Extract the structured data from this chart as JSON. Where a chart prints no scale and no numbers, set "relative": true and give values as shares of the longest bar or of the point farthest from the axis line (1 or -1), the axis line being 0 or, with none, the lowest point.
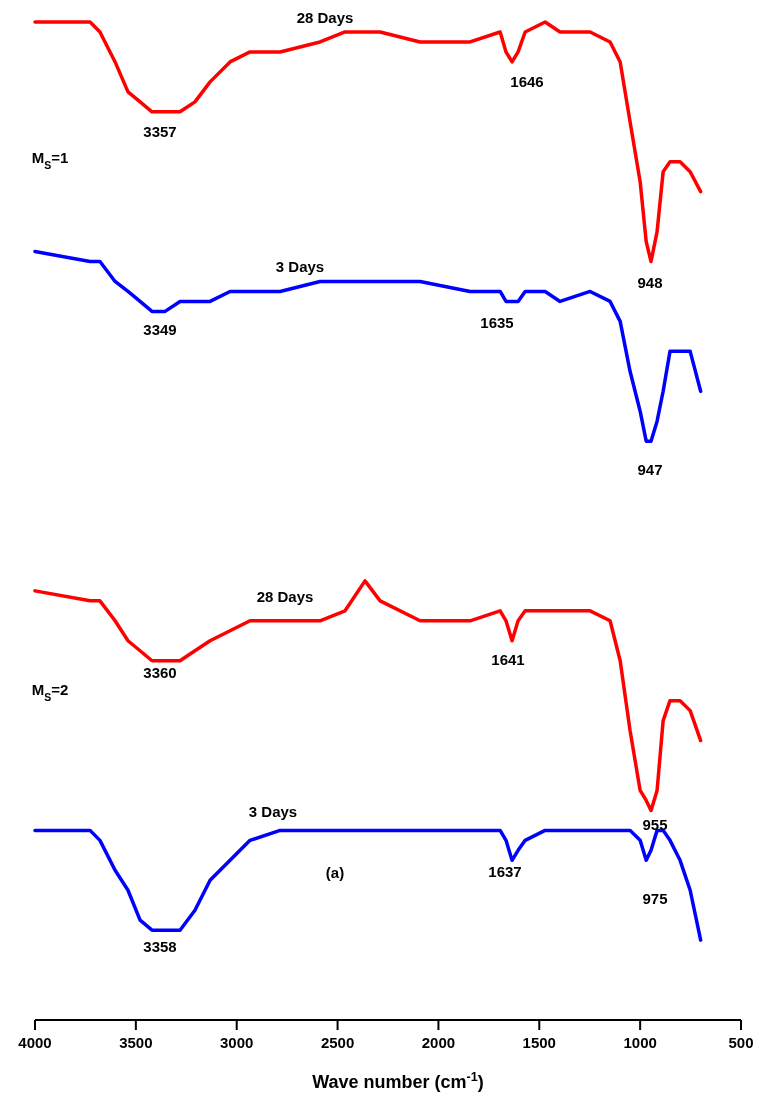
{
  "chart_data": {
    "type": "line",
    "relative": true,
    "xlabel": "Wave number (cm$^{-1}$)",
    "x": [
      4000,
      3727,
      3678,
      3603,
      3539,
      3479,
      3420,
      3355,
      3281,
      3207,
      3132,
      3033,
      2934,
      2785,
      2587,
      2463,
      2364,
      2289,
      2091,
      1843,
      1694,
      1665,
      1635,
      1605,
      1570,
      1471,
      1397,
      1248,
      1149,
      1099,
      1050,
      1000,
      970,
      946,
      916,
      886,
      852,
      802,
      752,
      700
    ],
    "xlim": [
      4000,
      500
    ],
    "xticks": [
      4000,
      3500,
      3000,
      2500,
      2000,
      1500,
      1000,
      500
    ],
    "series": [
      {
        "color": "#ff0000",
        "values": [
          1.0,
          1.0,
          0.99,
          0.96,
          0.93,
          0.92,
          0.91,
          0.91,
          0.91,
          0.92,
          0.94,
          0.96,
          0.97,
          0.97,
          0.98,
          0.99,
          0.99,
          0.99,
          0.98,
          0.98,
          0.99,
          0.97,
          0.96,
          0.97,
          0.99,
          1.0,
          0.99,
          0.99,
          0.98,
          0.96,
          0.9,
          0.84,
          0.78,
          0.76,
          0.79,
          0.85,
          0.86,
          0.86,
          0.85,
          0.83
        ]
      },
      {
        "color": "#0000ff",
        "values": [
          0.77,
          0.76,
          0.76,
          0.74,
          0.73,
          0.72,
          0.71,
          0.71,
          0.72,
          0.72,
          0.72,
          0.73,
          0.73,
          0.73,
          0.74,
          0.74,
          0.74,
          0.74,
          0.74,
          0.73,
          0.73,
          0.72,
          0.72,
          0.72,
          0.73,
          0.73,
          0.72,
          0.73,
          0.72,
          0.7,
          0.65,
          0.61,
          0.58,
          0.58,
          0.6,
          0.63,
          0.67,
          0.67,
          0.67,
          0.63
        ]
      },
      {
        "color": "#ff0000",
        "values": [
          0.43,
          0.42,
          0.42,
          0.4,
          0.38,
          0.37,
          0.36,
          0.36,
          0.36,
          0.37,
          0.38,
          0.39,
          0.4,
          0.4,
          0.4,
          0.41,
          0.44,
          0.42,
          0.4,
          0.4,
          0.41,
          0.4,
          0.38,
          0.4,
          0.41,
          0.41,
          0.41,
          0.41,
          0.4,
          0.36,
          0.29,
          0.23,
          0.22,
          0.21,
          0.23,
          0.3,
          0.32,
          0.32,
          0.31,
          0.28
        ]
      },
      {
        "color": "#0000ff",
        "values": [
          0.19,
          0.19,
          0.18,
          0.15,
          0.13,
          0.1,
          0.09,
          0.09,
          0.09,
          0.11,
          0.14,
          0.16,
          0.18,
          0.19,
          0.19,
          0.19,
          0.19,
          0.19,
          0.19,
          0.19,
          0.19,
          0.18,
          0.16,
          0.17,
          0.18,
          0.19,
          0.19,
          0.19,
          0.19,
          0.19,
          0.19,
          0.18,
          0.16,
          0.17,
          0.19,
          0.19,
          0.18,
          0.16,
          0.13,
          0.08
        ]
      }
    ],
    "annotations": [
      "28 Days",
      "3357",
      "1646",
      "948",
      "M$_{S}$=1",
      "3 Days",
      "3349",
      "1635",
      "947",
      "28 Days",
      "3360",
      "1641",
      "M$_{S}$=2",
      "955",
      "3 Days",
      "(a)",
      "1637",
      "975",
      "3358"
    ]
  }
}
